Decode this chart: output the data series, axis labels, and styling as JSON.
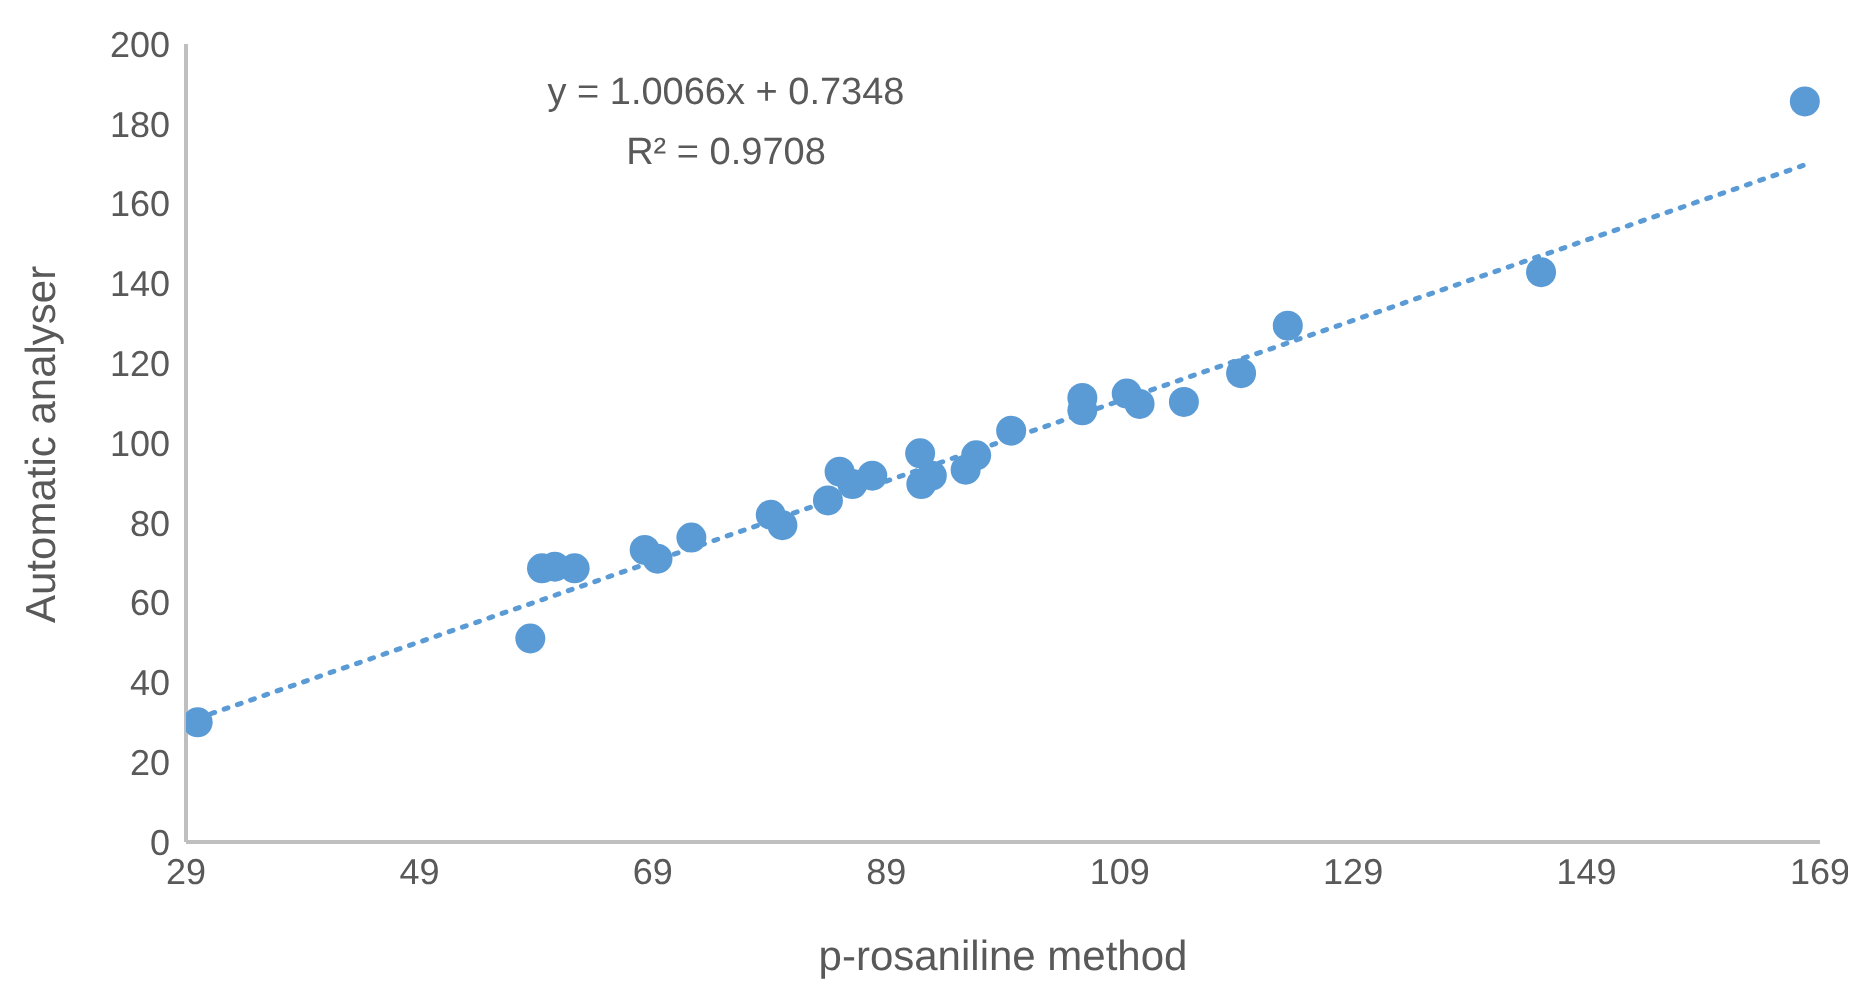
{
  "chart_data": {
    "type": "scatter",
    "xlabel": "p-rosaniline method",
    "ylabel": "Automatic analyser",
    "annotations": [
      "y = 1.0066x + 0.7348",
      "R² = 0.9708"
    ],
    "xlim": [
      29,
      169
    ],
    "xticks": [
      29,
      49,
      69,
      89,
      109,
      129,
      149,
      169
    ],
    "ylim": [
      0,
      200
    ],
    "yticks": [
      0,
      20,
      40,
      60,
      80,
      100,
      120,
      140,
      160,
      180,
      200
    ],
    "grid": false,
    "legend": false,
    "marker": "circle",
    "series": [
      {
        "color": "#5b9bd5",
        "x": [
          30,
          58.5,
          59.5,
          60.6,
          62.3,
          68.3,
          69.4,
          72.3,
          79.1,
          80.1,
          84,
          85,
          86.1,
          87.8,
          91.9,
          92,
          92.9,
          95.8,
          96.7,
          99.7,
          105.8,
          105.8,
          109.6,
          110.7,
          114.5,
          119.4,
          123.4,
          145.1,
          167.7
        ],
        "values": [
          30,
          51,
          68.6,
          69,
          68.6,
          73.2,
          71,
          76.3,
          82,
          79.4,
          85.6,
          92.8,
          89.7,
          91.8,
          97.4,
          89.7,
          91.8,
          93.3,
          96.9,
          103.1,
          111.3,
          108.2,
          112.4,
          109.8,
          110.3,
          117.5,
          129.4,
          142.8,
          185.6
        ]
      },
      {
        "type": "line",
        "color": "#5b9bd5",
        "line_style": "dotted",
        "marker": "none",
        "x": [
          30,
          168
        ],
        "values": [
          31,
          170
        ]
      }
    ]
  }
}
